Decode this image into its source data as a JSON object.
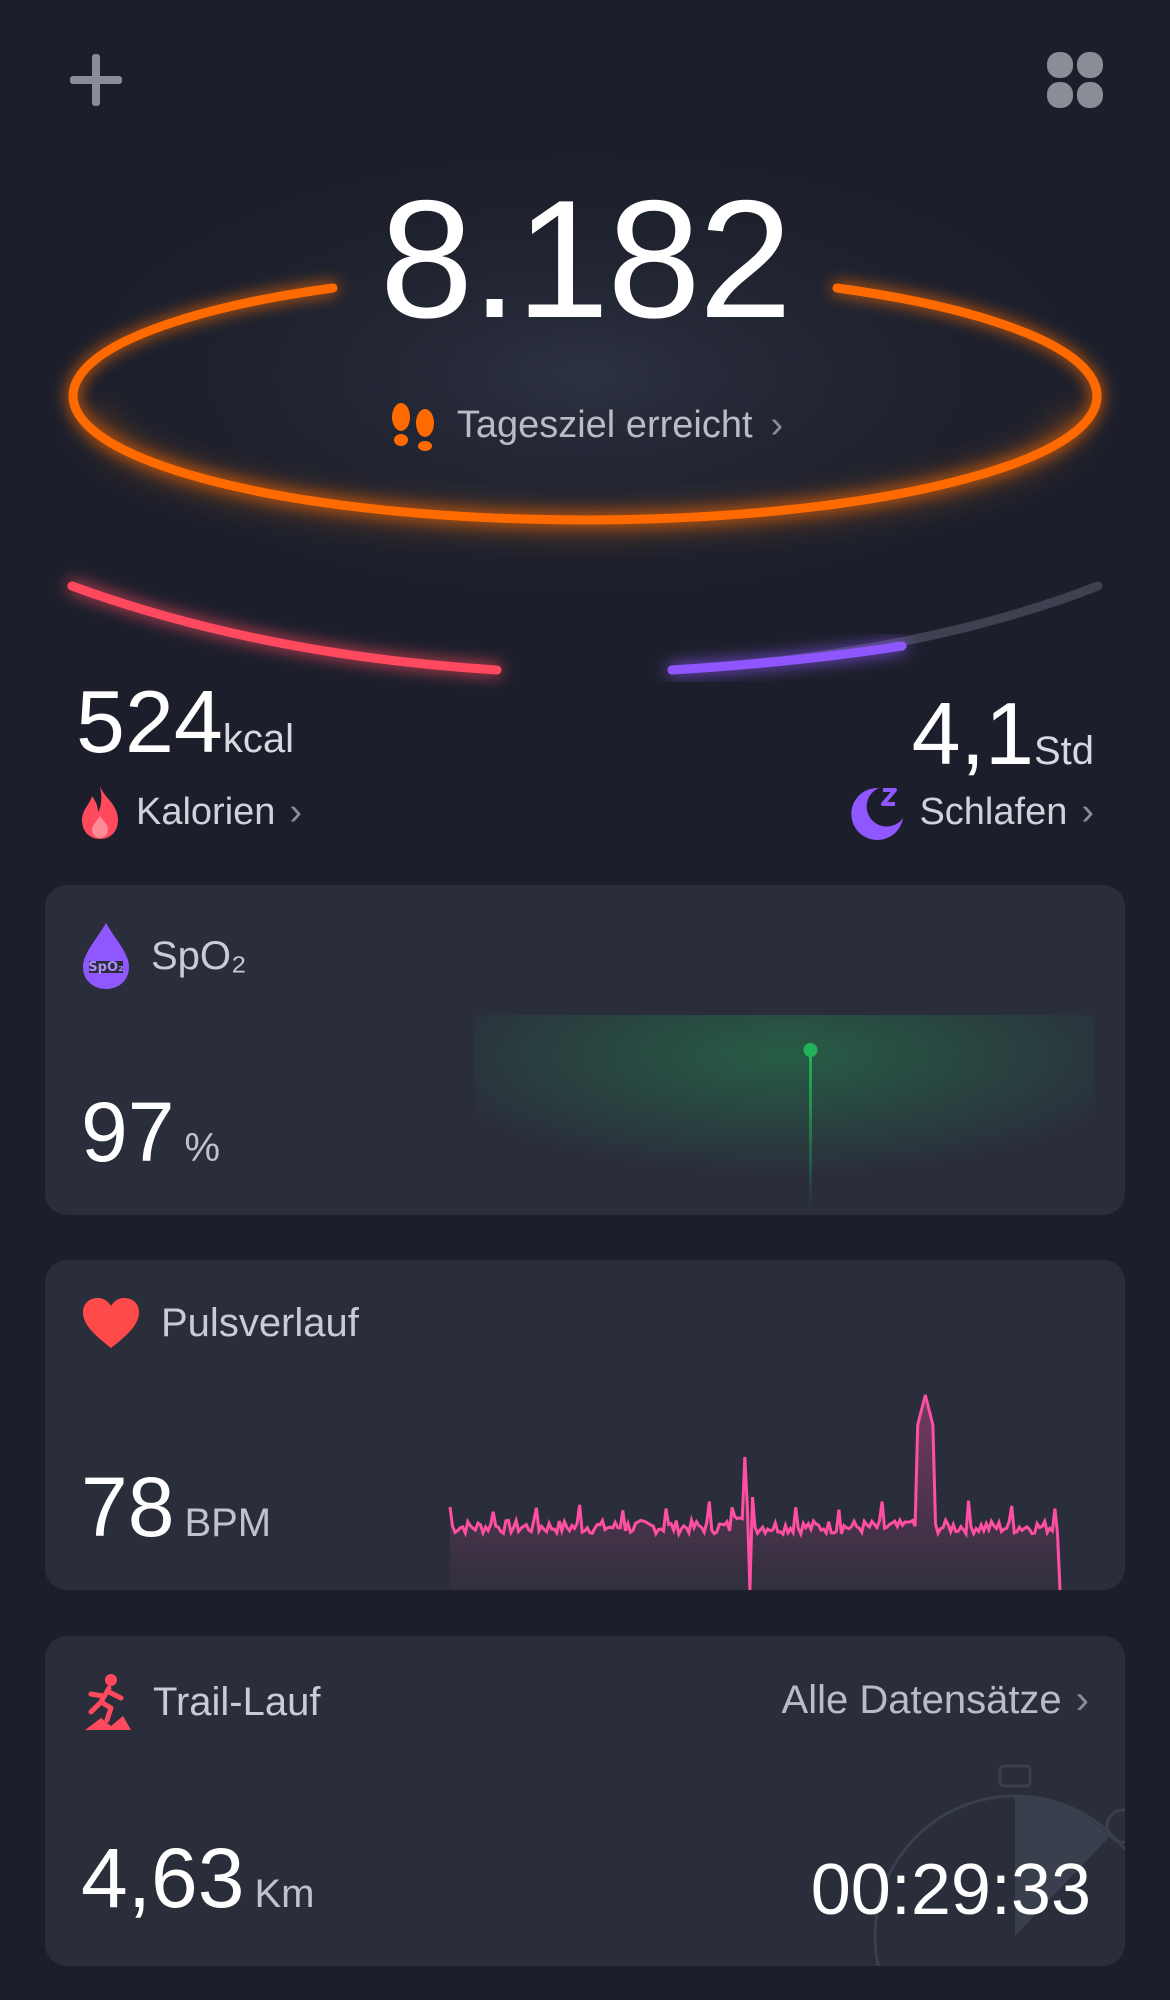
{
  "header": {
    "add_icon": "plus-icon",
    "menu_icon": "four-dots-icon"
  },
  "steps": {
    "value": "8.182",
    "goal_label": "Tagesziel erreicht",
    "chevron": "›",
    "icon": "footprints-icon"
  },
  "calories": {
    "value": "524",
    "unit": "kcal",
    "label": "Kalorien",
    "chevron": "›",
    "icon": "flame-icon"
  },
  "sleep": {
    "value": "4,1",
    "unit": "Std",
    "label": "Schlafen",
    "chevron": "›",
    "icon": "moon-icon"
  },
  "spo2": {
    "title": "SpO₂",
    "value": "97",
    "unit": "%",
    "icon": "spo2-drop-icon"
  },
  "pulse": {
    "title": "Pulsverlauf",
    "value": "78",
    "unit": "BPM",
    "icon": "heart-icon"
  },
  "workout": {
    "title": "Trail-Lauf",
    "link": "Alle Datensätze",
    "chevron": "›",
    "distance": "4,63",
    "distance_unit": "Km",
    "duration": "00:29:33",
    "icon": "trail-run-icon"
  },
  "colors": {
    "steps": "#ff6a00",
    "calories": "#ff4a5e",
    "sleep": "#8f57ff",
    "spo2": "#22b35a",
    "pulse": "#ff4fa3"
  }
}
